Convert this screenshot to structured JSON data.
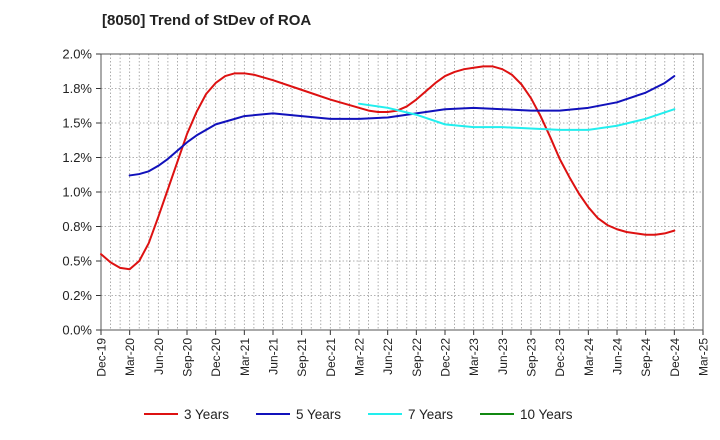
{
  "chart_data": {
    "type": "line",
    "title": "[8050]  Trend of StDev of ROA",
    "xlabel": "",
    "ylabel": "",
    "x_ticks": [
      "Dec-19",
      "Mar-20",
      "Jun-20",
      "Sep-20",
      "Dec-20",
      "Mar-21",
      "Jun-21",
      "Sep-21",
      "Dec-21",
      "Mar-22",
      "Jun-22",
      "Sep-22",
      "Dec-22",
      "Mar-23",
      "Jun-23",
      "Sep-23",
      "Dec-23",
      "Mar-24",
      "Jun-24",
      "Sep-24",
      "Dec-24",
      "Mar-25"
    ],
    "y_ticks": [
      "0.0%",
      "0.2%",
      "0.5%",
      "0.8%",
      "1.0%",
      "1.2%",
      "1.5%",
      "1.8%",
      "2.0%"
    ],
    "ylim": [
      0,
      2.0
    ],
    "grid": true,
    "legend_position": "bottom",
    "series": [
      {
        "name": "3 Years",
        "color": "#dd1111",
        "points": [
          [
            "Dec-19",
            0.55
          ],
          [
            "Jan-20",
            0.49
          ],
          [
            "Feb-20",
            0.45
          ],
          [
            "Mar-20",
            0.44
          ],
          [
            "Apr-20",
            0.5
          ],
          [
            "May-20",
            0.63
          ],
          [
            "Jun-20",
            0.82
          ],
          [
            "Jul-20",
            1.02
          ],
          [
            "Aug-20",
            1.22
          ],
          [
            "Sep-20",
            1.42
          ],
          [
            "Oct-20",
            1.58
          ],
          [
            "Nov-20",
            1.71
          ],
          [
            "Dec-20",
            1.79
          ],
          [
            "Jan-21",
            1.84
          ],
          [
            "Feb-21",
            1.86
          ],
          [
            "Mar-21",
            1.86
          ],
          [
            "Apr-21",
            1.85
          ],
          [
            "May-21",
            1.83
          ],
          [
            "Jun-21",
            1.81
          ],
          [
            "Sep-21",
            1.74
          ],
          [
            "Dec-21",
            1.67
          ],
          [
            "Mar-22",
            1.61
          ],
          [
            "Apr-22",
            1.59
          ],
          [
            "May-22",
            1.58
          ],
          [
            "Jun-22",
            1.58
          ],
          [
            "Jul-22",
            1.59
          ],
          [
            "Aug-22",
            1.62
          ],
          [
            "Sep-22",
            1.67
          ],
          [
            "Oct-22",
            1.73
          ],
          [
            "Nov-22",
            1.79
          ],
          [
            "Dec-22",
            1.84
          ],
          [
            "Jan-23",
            1.87
          ],
          [
            "Feb-23",
            1.89
          ],
          [
            "Mar-23",
            1.9
          ],
          [
            "Apr-23",
            1.91
          ],
          [
            "May-23",
            1.91
          ],
          [
            "Jun-23",
            1.89
          ],
          [
            "Jul-23",
            1.85
          ],
          [
            "Aug-23",
            1.78
          ],
          [
            "Sep-23",
            1.68
          ],
          [
            "Oct-23",
            1.55
          ],
          [
            "Nov-23",
            1.4
          ],
          [
            "Dec-23",
            1.24
          ],
          [
            "Jan-24",
            1.11
          ],
          [
            "Feb-24",
            0.99
          ],
          [
            "Mar-24",
            0.89
          ],
          [
            "Apr-24",
            0.81
          ],
          [
            "May-24",
            0.76
          ],
          [
            "Jun-24",
            0.73
          ],
          [
            "Jul-24",
            0.71
          ],
          [
            "Aug-24",
            0.7
          ],
          [
            "Sep-24",
            0.69
          ],
          [
            "Oct-24",
            0.69
          ],
          [
            "Nov-24",
            0.7
          ],
          [
            "Dec-24",
            0.72
          ]
        ]
      },
      {
        "name": "5 Years",
        "color": "#1111bb",
        "points": [
          [
            "Mar-20",
            1.12
          ],
          [
            "Apr-20",
            1.13
          ],
          [
            "May-20",
            1.15
          ],
          [
            "Jun-20",
            1.19
          ],
          [
            "Jul-20",
            1.24
          ],
          [
            "Aug-20",
            1.3
          ],
          [
            "Sep-20",
            1.36
          ],
          [
            "Oct-20",
            1.41
          ],
          [
            "Nov-20",
            1.45
          ],
          [
            "Dec-20",
            1.49
          ],
          [
            "Feb-21",
            1.53
          ],
          [
            "Mar-21",
            1.55
          ],
          [
            "Jun-21",
            1.57
          ],
          [
            "Sep-21",
            1.55
          ],
          [
            "Dec-21",
            1.53
          ],
          [
            "Mar-22",
            1.53
          ],
          [
            "Jun-22",
            1.54
          ],
          [
            "Sep-22",
            1.57
          ],
          [
            "Dec-22",
            1.6
          ],
          [
            "Mar-23",
            1.61
          ],
          [
            "Jun-23",
            1.6
          ],
          [
            "Sep-23",
            1.59
          ],
          [
            "Dec-23",
            1.59
          ],
          [
            "Mar-24",
            1.61
          ],
          [
            "Jun-24",
            1.65
          ],
          [
            "Sep-24",
            1.72
          ],
          [
            "Nov-24",
            1.79
          ],
          [
            "Dec-24",
            1.84
          ]
        ]
      },
      {
        "name": "7 Years",
        "color": "#22eeee",
        "points": [
          [
            "Mar-22",
            1.64
          ],
          [
            "Jun-22",
            1.61
          ],
          [
            "Sep-22",
            1.56
          ],
          [
            "Dec-22",
            1.49
          ],
          [
            "Mar-23",
            1.47
          ],
          [
            "Jun-23",
            1.47
          ],
          [
            "Sep-23",
            1.46
          ],
          [
            "Dec-23",
            1.45
          ],
          [
            "Mar-24",
            1.45
          ],
          [
            "Jun-24",
            1.48
          ],
          [
            "Sep-24",
            1.53
          ],
          [
            "Dec-24",
            1.6
          ]
        ]
      },
      {
        "name": "10 Years",
        "color": "#118811",
        "points": []
      }
    ]
  }
}
